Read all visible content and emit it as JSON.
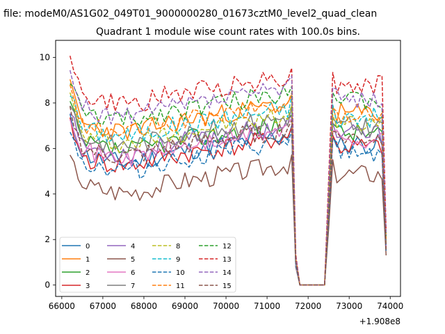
{
  "chart_data": {
    "type": "line",
    "suptitle": "file: modeM0/AS1G02_049T01_9000000280_01673cztM0_level2_quad_clean",
    "title": "Quadrant 1 module wise count rates with 100.0s bins.",
    "xlabel": "",
    "ylabel": "",
    "x_offset_label": "+1.908e8",
    "xlim": [
      65850,
      74250
    ],
    "ylim": [
      -0.5,
      10.75
    ],
    "xticks": [
      66000,
      67000,
      68000,
      69000,
      70000,
      71000,
      72000,
      73000,
      74000
    ],
    "xtick_labels": [
      "66000",
      "67000",
      "68000",
      "69000",
      "70000",
      "71000",
      "72000",
      "73000",
      "74000"
    ],
    "yticks": [
      0,
      2,
      4,
      6,
      8,
      10
    ],
    "ytick_labels": [
      "0",
      "2",
      "4",
      "6",
      "8",
      "10"
    ],
    "grid": false,
    "legend_location": "lower-left",
    "legend_columns": 4,
    "x_start": 66200,
    "x_step": 100,
    "n_points": 78,
    "series": [
      {
        "name": "0",
        "color": "#1f77b4",
        "dash": "solid",
        "level": 5.75,
        "start": 7.3,
        "seed": 11
      },
      {
        "name": "1",
        "color": "#ff7f0e",
        "dash": "solid",
        "level": 7.1,
        "start": 8.8,
        "seed": 23
      },
      {
        "name": "2",
        "color": "#2ca02c",
        "dash": "solid",
        "level": 6.25,
        "start": 8.0,
        "seed": 37
      },
      {
        "name": "3",
        "color": "#d62728",
        "dash": "solid",
        "level": 5.6,
        "start": 7.1,
        "seed": 41
      },
      {
        "name": "4",
        "color": "#9467bd",
        "dash": "solid",
        "level": 6.15,
        "start": 7.8,
        "seed": 53
      },
      {
        "name": "5",
        "color": "#8c564b",
        "dash": "solid",
        "level": 4.45,
        "start": 5.6,
        "seed": 67
      },
      {
        "name": "6",
        "color": "#e377c2",
        "dash": "solid",
        "level": 5.95,
        "start": 7.5,
        "seed": 71
      },
      {
        "name": "7",
        "color": "#7f7f7f",
        "dash": "solid",
        "level": 6.5,
        "start": 8.1,
        "seed": 83
      },
      {
        "name": "8",
        "color": "#bcbd22",
        "dash": "dashed",
        "level": 6.6,
        "start": 8.3,
        "seed": 97
      },
      {
        "name": "9",
        "color": "#17becf",
        "dash": "dashed",
        "level": 6.9,
        "start": 8.5,
        "seed": 101
      },
      {
        "name": "10",
        "color": "#1f77b4",
        "dash": "dashed",
        "level": 5.4,
        "start": 6.9,
        "seed": 113
      },
      {
        "name": "11",
        "color": "#ff7f0e",
        "dash": "dashed",
        "level": 7.05,
        "start": 8.6,
        "seed": 127
      },
      {
        "name": "12",
        "color": "#2ca02c",
        "dash": "dashed",
        "level": 7.6,
        "start": 9.0,
        "seed": 131
      },
      {
        "name": "13",
        "color": "#d62728",
        "dash": "dashed",
        "level": 8.3,
        "start": 10.2,
        "seed": 149
      },
      {
        "name": "14",
        "color": "#9467bd",
        "dash": "dashed",
        "level": 7.75,
        "start": 9.2,
        "seed": 157
      },
      {
        "name": "15",
        "color": "#8c564b",
        "dash": "dashed",
        "level": 6.0,
        "start": 7.6,
        "seed": 163
      }
    ]
  }
}
